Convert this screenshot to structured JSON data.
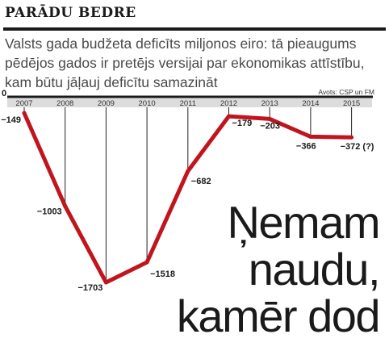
{
  "kicker": "PARĀDU BEDRE",
  "subtitle": "Valsts gada budžeta deficīts miljonos eiro: tā pieaugums pēdējos gados ir pretējs versijai par ekonomikas attīstību, kam būtu jāļauj deficītu samazināt",
  "source": "Avots: CSP un FM",
  "headline": [
    "Ņemam",
    "naudu,",
    "kamēr dod"
  ],
  "colors": {
    "line": "#c0151d",
    "axis": "#1a1a1a",
    "band": "#dcdcdc",
    "drop": "#222222"
  },
  "chart_data": {
    "type": "line",
    "x": [
      "2007",
      "2008",
      "2009",
      "2010",
      "2011",
      "2012",
      "2013",
      "2014",
      "2015"
    ],
    "values": [
      -149,
      -1003,
      -1703,
      -1518,
      -682,
      -179,
      -203,
      -366,
      -372
    ],
    "value_labels": [
      "−149",
      "−1003",
      "−1703",
      "−1518",
      "−682",
      "−179",
      "−203",
      "−366",
      "−372 (?)"
    ],
    "baseline_label": "0",
    "ylim": [
      -1703,
      0
    ],
    "grid": false
  }
}
